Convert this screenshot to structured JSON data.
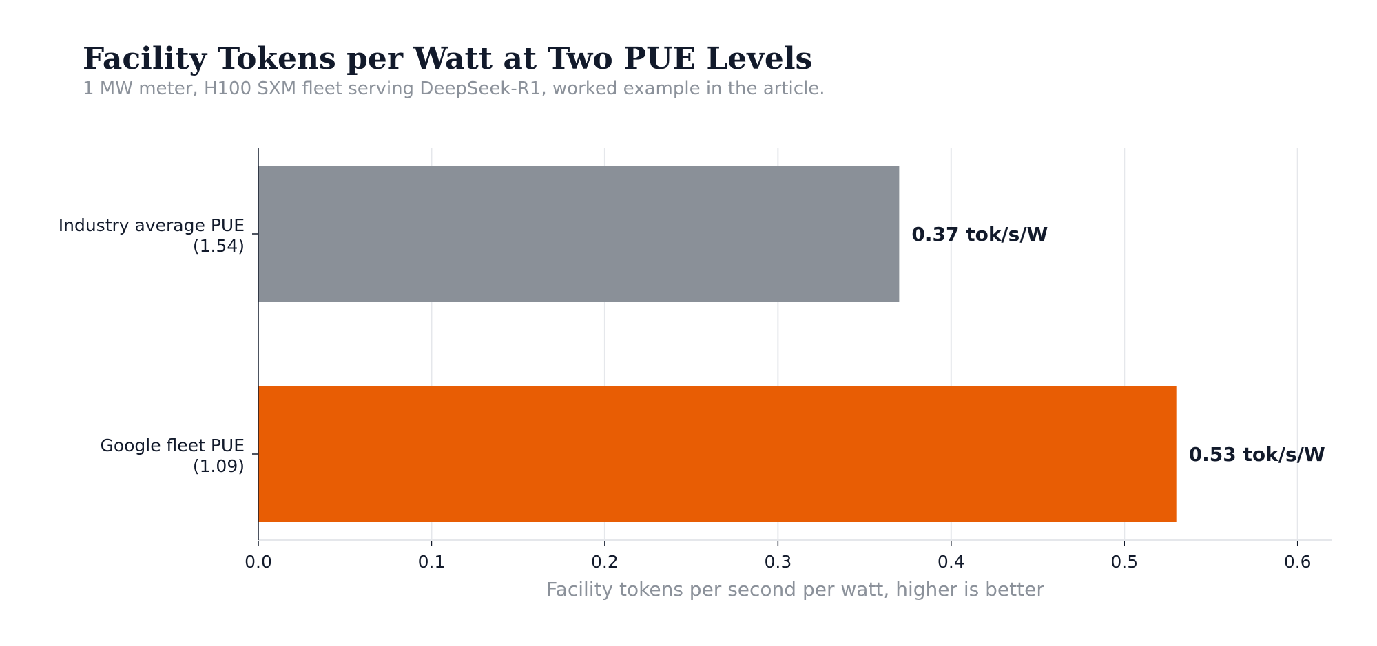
{
  "chart_data": {
    "type": "bar",
    "orientation": "horizontal",
    "title": "Facility Tokens per Watt at Two PUE Levels",
    "subtitle": "1 MW meter, H100 SXM fleet serving DeepSeek-R1, worked example in the article.",
    "categories": [
      [
        "Industry average PUE",
        "(1.54)"
      ],
      [
        "Google fleet PUE",
        "(1.09)"
      ]
    ],
    "values": [
      0.37,
      0.53
    ],
    "value_labels": [
      "0.37 tok/s/W",
      "0.53 tok/s/W"
    ],
    "bar_colors": [
      "#8a9098",
      "#e85d04"
    ],
    "xlabel": "Facility tokens per second per watt, higher is better",
    "ylabel": "",
    "xlim": [
      0,
      0.62
    ],
    "xticks": [
      0.0,
      0.1,
      0.2,
      0.3,
      0.4,
      0.5,
      0.6
    ],
    "xtick_labels": [
      "0.0",
      "0.1",
      "0.2",
      "0.3",
      "0.4",
      "0.5",
      "0.6"
    ],
    "grid": "vertical",
    "legend": "none"
  },
  "colors": {
    "text": "#121a2b",
    "muted": "#8b919a",
    "grid": "#e5e7eb",
    "axis": "#121a2b"
  }
}
